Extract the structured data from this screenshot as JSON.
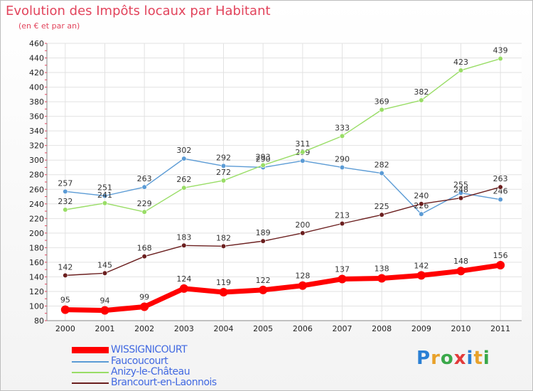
{
  "title": "Evolution des Impôts locaux par Habitant",
  "subtitle": "(en € et par an)",
  "logo": {
    "text": "Proxiti",
    "letter_colors": [
      "#2a7fd4",
      "#e8a12a",
      "#3aa84a",
      "#e23b3b",
      "#2a7fd4",
      "#e8a12a",
      "#3aa84a"
    ]
  },
  "chart_data": {
    "type": "line",
    "x": [
      "2000",
      "2001",
      "2002",
      "2003",
      "2004",
      "2005",
      "2006",
      "2007",
      "2008",
      "2009",
      "2010",
      "2011"
    ],
    "ylim": [
      80,
      460
    ],
    "yticks": [
      80,
      100,
      120,
      140,
      160,
      180,
      200,
      220,
      240,
      260,
      280,
      300,
      320,
      340,
      360,
      380,
      400,
      420,
      440,
      460
    ],
    "grid": true,
    "legend_position": "bottom-left",
    "series": [
      {
        "name": "WISSIGNICOURT",
        "color": "#ff0000",
        "values": [
          95,
          94,
          99,
          124,
          119,
          122,
          128,
          137,
          138,
          142,
          148,
          156
        ]
      },
      {
        "name": "Faucoucourt",
        "color": "#5b9bd5",
        "values": [
          257,
          251,
          263,
          302,
          292,
          290,
          299,
          290,
          282,
          226,
          255,
          246
        ]
      },
      {
        "name": "Anizy-le-Château",
        "color": "#99dd66",
        "values": [
          232,
          241,
          229,
          262,
          272,
          293,
          311,
          333,
          369,
          382,
          423,
          439
        ]
      },
      {
        "name": "Brancourt-en-Laonnois",
        "color": "#6b1f1f",
        "values": [
          142,
          145,
          168,
          183,
          182,
          189,
          200,
          213,
          225,
          240,
          248,
          263
        ]
      }
    ]
  }
}
